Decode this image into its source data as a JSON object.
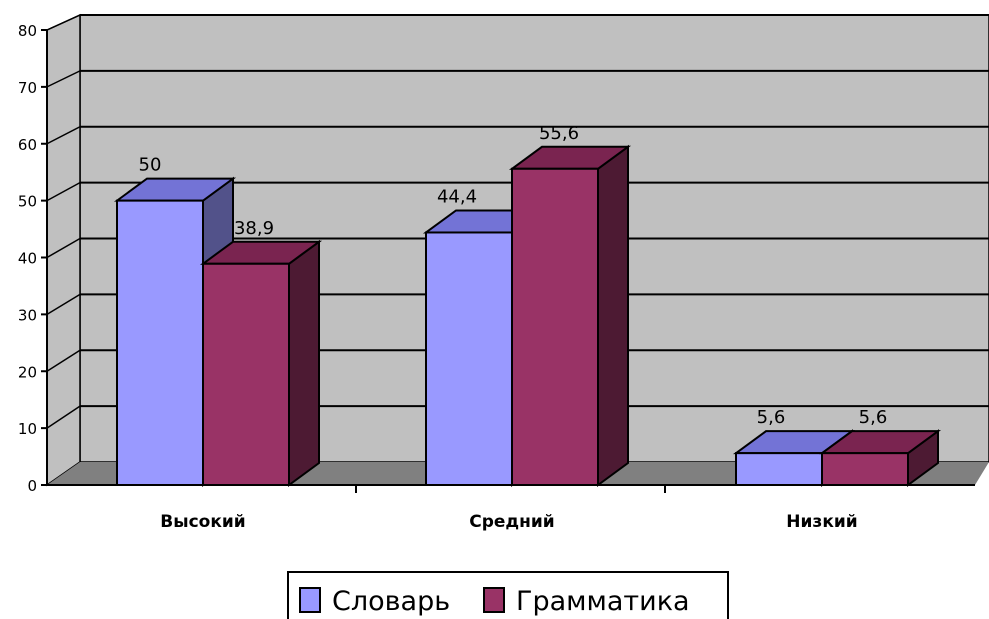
{
  "chart_data": {
    "type": "bar",
    "categories": [
      "Высокий",
      "Средний",
      "Низкий"
    ],
    "series": [
      {
        "name": "Словарь",
        "values": [
          50,
          44.4,
          5.6
        ],
        "labels": [
          "50",
          "44,4",
          "5,6"
        ],
        "color": "#9999ff"
      },
      {
        "name": "Грамматика",
        "values": [
          38.9,
          55.6,
          5.6
        ],
        "labels": [
          "38,9",
          "55,6",
          "5,6"
        ],
        "color": "#993366"
      }
    ],
    "ylim": [
      0,
      80
    ],
    "yticks": [
      "0",
      "10",
      "20",
      "30",
      "40",
      "50",
      "60",
      "70",
      "80"
    ],
    "title": "",
    "xlabel": "",
    "ylabel": "",
    "grid": true,
    "three_d": true,
    "legend_position": "bottom",
    "colors": {
      "wall": "#c0c0c0",
      "floor": "#808080",
      "series1_front": "#9999ff",
      "series1_top": "#7373d6",
      "series1_side": "#52528a",
      "series2_front": "#993366",
      "series2_top": "#7a2450",
      "series2_side": "#4d1a33"
    }
  }
}
